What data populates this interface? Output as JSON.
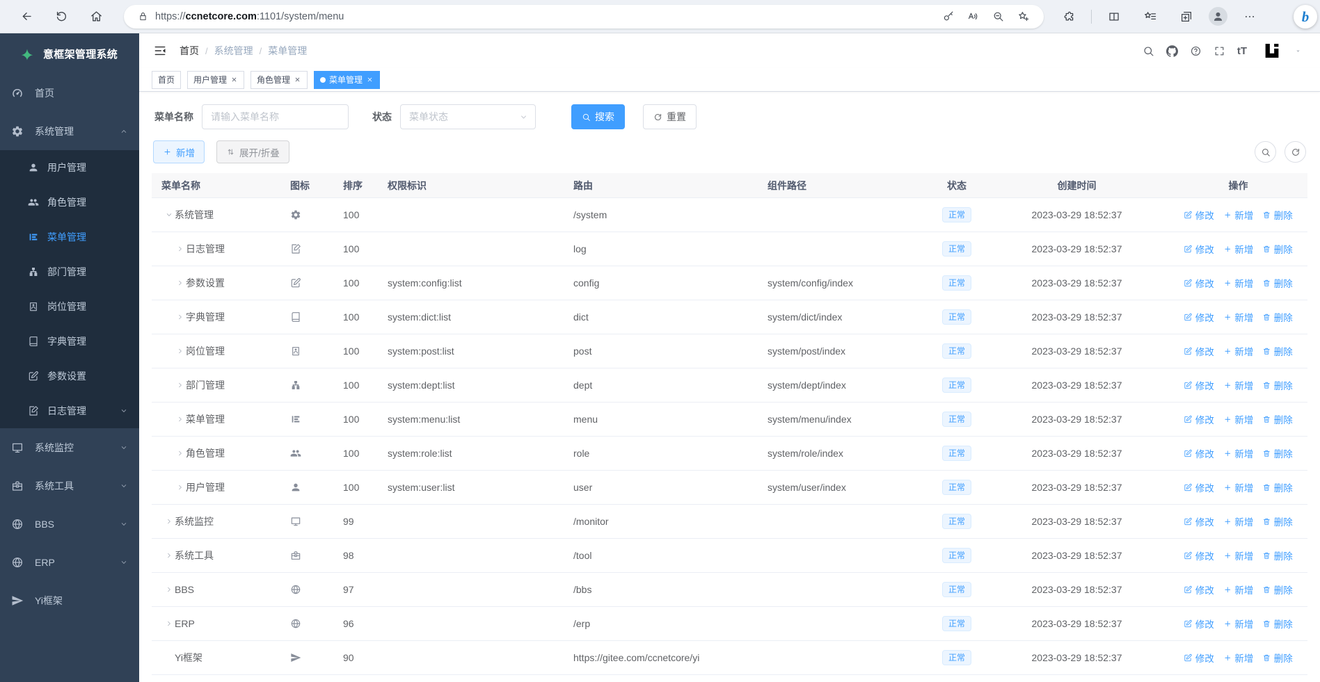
{
  "browser": {
    "toolbar_icons": [
      "back",
      "refresh",
      "home"
    ],
    "url": {
      "scheme": "https://",
      "domain": "ccnetcore.com",
      "rest": ":1101/system/menu"
    },
    "address_bar_icons": [
      "lock",
      "key",
      "read-aloud",
      "zoom-out",
      "add-favorite-star"
    ],
    "right_icons": [
      "extensions",
      "split-screen",
      "favorites",
      "collections",
      "profile",
      "more-options",
      "copilot"
    ]
  },
  "sidebar": {
    "logo_title": "意框架管理系统",
    "items": [
      {
        "key": "home",
        "label": "首页",
        "icon": "dashboard",
        "level": 0
      },
      {
        "key": "system",
        "label": "系统管理",
        "icon": "gear",
        "level": 0,
        "caret": "up",
        "open": true
      },
      {
        "key": "user",
        "label": "用户管理",
        "icon": "user",
        "level": 1
      },
      {
        "key": "role",
        "label": "角色管理",
        "icon": "users",
        "level": 1
      },
      {
        "key": "menu",
        "label": "菜单管理",
        "icon": "menutree",
        "level": 1,
        "active": true
      },
      {
        "key": "dept",
        "label": "部门管理",
        "icon": "sitemap",
        "level": 1
      },
      {
        "key": "post",
        "label": "岗位管理",
        "icon": "idbadge",
        "level": 1
      },
      {
        "key": "dict",
        "label": "字典管理",
        "icon": "book",
        "level": 1
      },
      {
        "key": "config",
        "label": "参数设置",
        "icon": "edit",
        "level": 1
      },
      {
        "key": "log",
        "label": "日志管理",
        "icon": "docedit",
        "level": 1,
        "caret": "down"
      },
      {
        "key": "monitor",
        "label": "系统监控",
        "icon": "monitor",
        "level": 0,
        "caret": "down"
      },
      {
        "key": "tool",
        "label": "系统工具",
        "icon": "tool",
        "level": 0,
        "caret": "down"
      },
      {
        "key": "bbs",
        "label": "BBS",
        "icon": "globe",
        "level": 0,
        "caret": "down"
      },
      {
        "key": "erp",
        "label": "ERP",
        "icon": "globe",
        "level": 0,
        "caret": "down"
      },
      {
        "key": "yi",
        "label": "Yi框架",
        "icon": "send",
        "level": 0
      }
    ]
  },
  "header": {
    "breadcrumb": [
      "首页",
      "系统管理",
      "菜单管理"
    ],
    "separator": "/",
    "right_icons": [
      "search",
      "github",
      "question",
      "fullscreen"
    ],
    "font_icon_label": "tT"
  },
  "tabs": [
    {
      "key": "home",
      "label": "首页",
      "closable": false,
      "active": false
    },
    {
      "key": "user",
      "label": "用户管理",
      "closable": true,
      "active": false
    },
    {
      "key": "role",
      "label": "角色管理",
      "closable": true,
      "active": false
    },
    {
      "key": "menu",
      "label": "菜单管理",
      "closable": true,
      "active": true
    }
  ],
  "search": {
    "name_label": "菜单名称",
    "name_placeholder": "请输入菜单名称",
    "status_label": "状态",
    "status_placeholder": "菜单状态",
    "search_btn": "搜索",
    "reset_btn": "重置"
  },
  "toolbar": {
    "add_btn": "新增",
    "toggle_btn": "展开/折叠",
    "right_icons": [
      "search",
      "refresh"
    ]
  },
  "table": {
    "columns": [
      "菜单名称",
      "图标",
      "排序",
      "权限标识",
      "路由",
      "组件路径",
      "状态",
      "创建时间",
      "操作"
    ],
    "actions": [
      "修改",
      "新增",
      "删除"
    ],
    "rows": [
      {
        "name": "系统管理",
        "icon": "gear",
        "sort": "100",
        "perms": "",
        "route": "/system",
        "component": "",
        "status": "正常",
        "created": "2023-03-29 18:52:37",
        "level": 0,
        "arrow": "down"
      },
      {
        "name": "日志管理",
        "icon": "docedit",
        "sort": "100",
        "perms": "",
        "route": "log",
        "component": "",
        "status": "正常",
        "created": "2023-03-29 18:52:37",
        "level": 1,
        "arrow": "right"
      },
      {
        "name": "参数设置",
        "icon": "edit",
        "sort": "100",
        "perms": "system:config:list",
        "route": "config",
        "component": "system/config/index",
        "status": "正常",
        "created": "2023-03-29 18:52:37",
        "level": 1,
        "arrow": "right"
      },
      {
        "name": "字典管理",
        "icon": "book",
        "sort": "100",
        "perms": "system:dict:list",
        "route": "dict",
        "component": "system/dict/index",
        "status": "正常",
        "created": "2023-03-29 18:52:37",
        "level": 1,
        "arrow": "right"
      },
      {
        "name": "岗位管理",
        "icon": "idbadge",
        "sort": "100",
        "perms": "system:post:list",
        "route": "post",
        "component": "system/post/index",
        "status": "正常",
        "created": "2023-03-29 18:52:37",
        "level": 1,
        "arrow": "right"
      },
      {
        "name": "部门管理",
        "icon": "sitemap",
        "sort": "100",
        "perms": "system:dept:list",
        "route": "dept",
        "component": "system/dept/index",
        "status": "正常",
        "created": "2023-03-29 18:52:37",
        "level": 1,
        "arrow": "right"
      },
      {
        "name": "菜单管理",
        "icon": "menutree",
        "sort": "100",
        "perms": "system:menu:list",
        "route": "menu",
        "component": "system/menu/index",
        "status": "正常",
        "created": "2023-03-29 18:52:37",
        "level": 1,
        "arrow": "right"
      },
      {
        "name": "角色管理",
        "icon": "users",
        "sort": "100",
        "perms": "system:role:list",
        "route": "role",
        "component": "system/role/index",
        "status": "正常",
        "created": "2023-03-29 18:52:37",
        "level": 1,
        "arrow": "right"
      },
      {
        "name": "用户管理",
        "icon": "user",
        "sort": "100",
        "perms": "system:user:list",
        "route": "user",
        "component": "system/user/index",
        "status": "正常",
        "created": "2023-03-29 18:52:37",
        "level": 1,
        "arrow": "right"
      },
      {
        "name": "系统监控",
        "icon": "monitor",
        "sort": "99",
        "perms": "",
        "route": "/monitor",
        "component": "",
        "status": "正常",
        "created": "2023-03-29 18:52:37",
        "level": 0,
        "arrow": "right"
      },
      {
        "name": "系统工具",
        "icon": "tool",
        "sort": "98",
        "perms": "",
        "route": "/tool",
        "component": "",
        "status": "正常",
        "created": "2023-03-29 18:52:37",
        "level": 0,
        "arrow": "right"
      },
      {
        "name": "BBS",
        "icon": "globe",
        "sort": "97",
        "perms": "",
        "route": "/bbs",
        "component": "",
        "status": "正常",
        "created": "2023-03-29 18:52:37",
        "level": 0,
        "arrow": "right"
      },
      {
        "name": "ERP",
        "icon": "globe",
        "sort": "96",
        "perms": "",
        "route": "/erp",
        "component": "",
        "status": "正常",
        "created": "2023-03-29 18:52:37",
        "level": 0,
        "arrow": "right"
      },
      {
        "name": "Yi框架",
        "icon": "send",
        "sort": "90",
        "perms": "",
        "route": "https://gitee.com/ccnetcore/yi",
        "component": "",
        "status": "正常",
        "created": "2023-03-29 18:52:37",
        "level": 0,
        "arrow": "none"
      }
    ]
  },
  "colors": {
    "primary": "#409eff",
    "sidebar_bg": "#304156",
    "submenu_bg": "#1f2d3d",
    "logo_green": "#43b97f",
    "tab_active_bg": "#409eff",
    "status_badge_bg": "#ecf5ff",
    "status_badge_text": "#409eff"
  }
}
